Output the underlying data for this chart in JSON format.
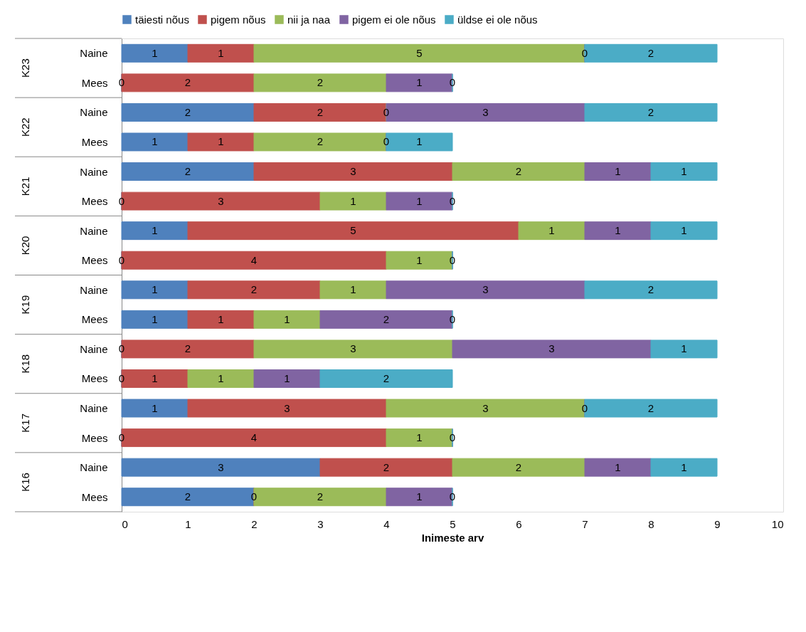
{
  "chart_data": {
    "type": "bar",
    "orientation": "horizontal",
    "stacked": true,
    "legend": "top",
    "grid": false,
    "xlabel": "Inimeste arv",
    "xlim": [
      0,
      10
    ],
    "xticks": [
      0,
      1,
      2,
      3,
      4,
      5,
      6,
      7,
      8,
      9,
      10
    ],
    "categories": [
      "Naine",
      "Mees",
      "Naine",
      "Mees",
      "Naine",
      "Mees",
      "Naine",
      "Mees",
      "Naine",
      "Mees",
      "Naine",
      "Mees",
      "Naine",
      "Mees",
      "Naine",
      "Mees"
    ],
    "annotations": [
      "K23",
      "K22",
      "K21",
      "K20",
      "K19",
      "K18",
      "K17",
      "K16"
    ],
    "series": [
      {
        "name": "täiesti nõus",
        "color": "#4f81bd",
        "values": [
          1,
          0,
          2,
          1,
          2,
          0,
          1,
          0,
          1,
          1,
          0,
          0,
          1,
          0,
          3,
          2
        ],
        "value_labels": [
          "1",
          "0",
          "2",
          "1",
          "2",
          "0",
          "1",
          "0",
          "1",
          "1",
          "0",
          "0",
          "1",
          "0",
          "3",
          "2"
        ]
      },
      {
        "name": "pigem nõus",
        "color": "#c0504d",
        "values": [
          1,
          2,
          2,
          1,
          3,
          3,
          5,
          4,
          2,
          1,
          2,
          1,
          3,
          4,
          2,
          0
        ],
        "value_labels": [
          "1",
          "2",
          "2",
          "1",
          "3",
          "3",
          "5",
          "4",
          "2",
          "1",
          "2",
          "1",
          "3",
          "4",
          "2",
          "0"
        ]
      },
      {
        "name": "nii ja naa",
        "color": "#9bbb59",
        "values": [
          5,
          2,
          0,
          2,
          2,
          1,
          1,
          1,
          1,
          1,
          3,
          1,
          3,
          1,
          2,
          2
        ],
        "value_labels": [
          "5",
          "2",
          "0",
          "2",
          "2",
          "1",
          "1",
          "1",
          "1",
          "1",
          "3",
          "1",
          "3",
          "1",
          "2",
          "2"
        ]
      },
      {
        "name": "pigem ei ole nõus",
        "color": "#8064a2",
        "values": [
          0,
          1,
          3,
          0,
          1,
          1,
          1,
          0,
          3,
          2,
          3,
          1,
          0,
          0,
          1,
          1
        ],
        "value_labels": [
          "0",
          "1",
          "3",
          "0",
          "1",
          "1",
          "1",
          null,
          "3",
          "2",
          "3",
          "1",
          "0",
          null,
          "1",
          "1"
        ]
      },
      {
        "name": "üldse ei ole nõus",
        "color": "#4bacc6",
        "values": [
          2,
          0,
          2,
          1,
          1,
          0,
          1,
          0,
          2,
          0,
          1,
          2,
          2,
          0,
          1,
          0
        ],
        "value_labels": [
          "2",
          "0",
          "2",
          "1",
          "1",
          "0",
          "1",
          "0",
          "2",
          "0",
          "1",
          "2",
          "2",
          "0",
          "1",
          "0"
        ]
      }
    ]
  }
}
